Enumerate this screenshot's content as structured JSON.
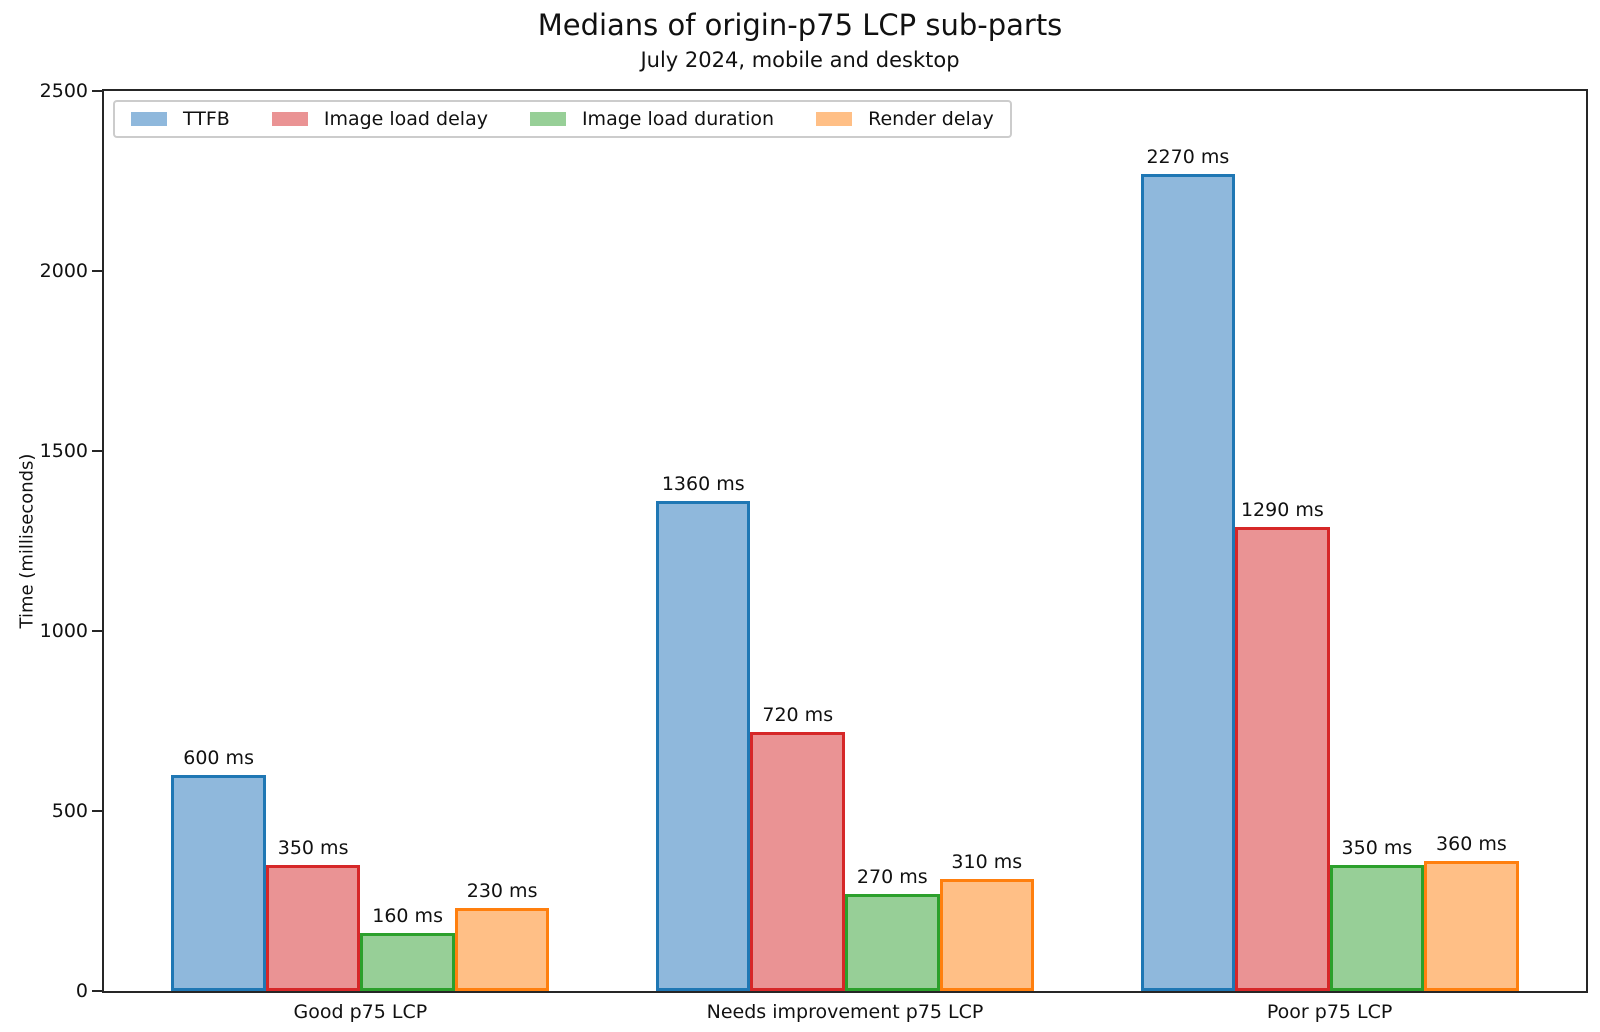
{
  "chart_data": {
    "type": "bar",
    "title": "Medians of origin-p75 LCP sub-parts",
    "subtitle": "July 2024, mobile and desktop",
    "ylabel": "Time (milliseconds)",
    "xlabel": "",
    "categories": [
      "Good p75 LCP",
      "Needs improvement p75 LCP",
      "Poor p75 LCP"
    ],
    "series": [
      {
        "name": "TTFB",
        "values": [
          600,
          1360,
          2270
        ],
        "fill": "#8FB8DC",
        "edge": "#1F77B4"
      },
      {
        "name": "Image load delay",
        "values": [
          350,
          720,
          1290
        ],
        "fill": "#EA9394",
        "edge": "#D62728"
      },
      {
        "name": "Image load duration",
        "values": [
          160,
          270,
          350
        ],
        "fill": "#97CF97",
        "edge": "#2CA02C"
      },
      {
        "name": "Render delay",
        "values": [
          230,
          310,
          360
        ],
        "fill": "#FFBF86",
        "edge": "#FF7F0E"
      }
    ],
    "value_suffix": " ms",
    "ylim": [
      0,
      2500
    ],
    "yticks": [
      0,
      500,
      1000,
      1500,
      2000,
      2500
    ],
    "grid": "off",
    "legend_position": "upper left",
    "axis_color": "#262626"
  }
}
